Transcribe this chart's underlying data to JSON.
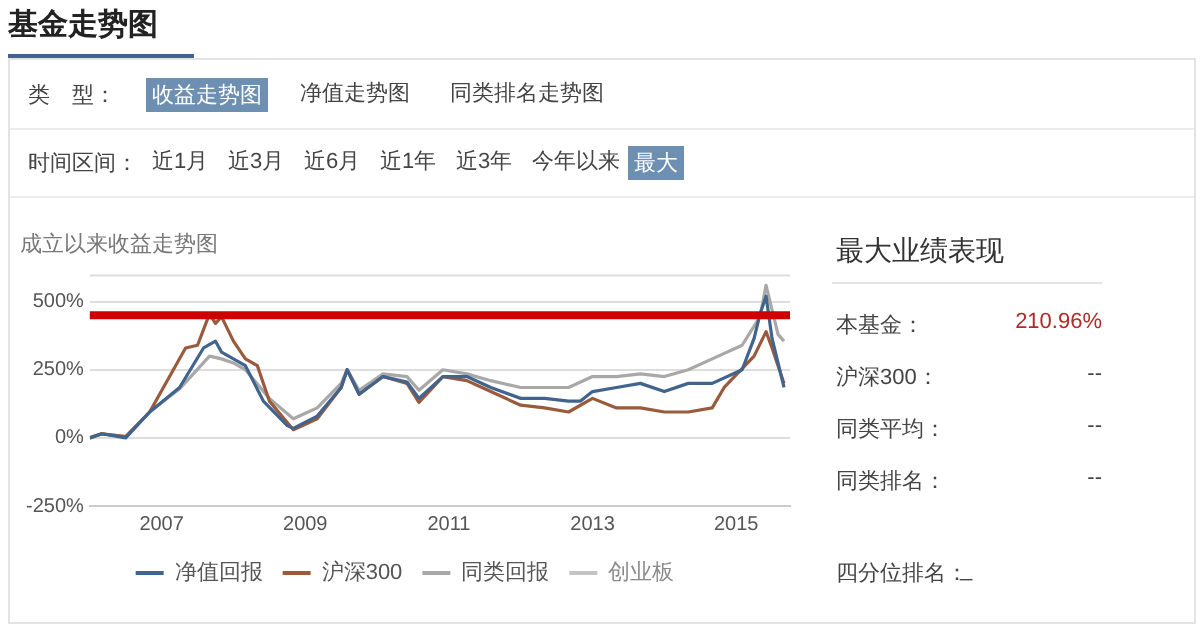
{
  "chart_data": {
    "type": "line",
    "title": "成立以来收益走势图",
    "xlim": [
      "2006-01",
      "2015-10"
    ],
    "xticks": [
      "2007",
      "2009",
      "2011",
      "2013",
      "2015"
    ],
    "ylim": [
      -250,
      600
    ],
    "yticks": [
      {
        "value": 500,
        "label": "500%"
      },
      {
        "value": 250,
        "label": "250%"
      },
      {
        "value": 0,
        "label": "0%"
      },
      {
        "value": -250,
        "label": "-250%"
      }
    ],
    "grid": "y",
    "legend": "bottom",
    "series": [
      {
        "name": "净值回报",
        "color": "#41648f",
        "x": [
          "2006-01",
          "2006-03",
          "2006-07",
          "2006-11",
          "2007-04",
          "2007-08",
          "2007-10",
          "2007-11",
          "2008-01",
          "2008-03",
          "2008-06",
          "2008-10",
          "2008-11",
          "2009-03",
          "2009-07",
          "2009-08",
          "2009-10",
          "2010-02",
          "2010-06",
          "2010-08",
          "2010-12",
          "2011-04",
          "2011-08",
          "2012-01",
          "2012-05",
          "2012-09",
          "2012-11",
          "2013-01",
          "2013-05",
          "2013-09",
          "2014-01",
          "2014-05",
          "2014-09",
          "2015-02",
          "2015-04",
          "2015-05",
          "2015-06",
          "2015-07",
          "2015-09"
        ],
        "values": [
          0,
          15,
          0,
          95,
          185,
          330,
          355,
          315,
          290,
          265,
          135,
          45,
          35,
          80,
          185,
          250,
          160,
          225,
          205,
          145,
          225,
          225,
          185,
          145,
          145,
          135,
          135,
          170,
          185,
          200,
          170,
          200,
          200,
          250,
          365,
          455,
          520,
          365,
          185
        ]
      },
      {
        "name": "沪深300",
        "color": "#9a5a3c",
        "x": [
          "2006-01",
          "2006-03",
          "2006-07",
          "2006-11",
          "2007-05",
          "2007-07",
          "2007-09",
          "2007-10",
          "2007-11",
          "2008-01",
          "2008-03",
          "2008-05",
          "2008-07",
          "2008-11",
          "2009-03",
          "2009-07",
          "2009-08",
          "2009-10",
          "2010-02",
          "2010-06",
          "2010-08",
          "2010-12",
          "2011-04",
          "2011-08",
          "2012-01",
          "2012-05",
          "2012-09",
          "2013-01",
          "2013-05",
          "2013-09",
          "2014-01",
          "2014-05",
          "2014-09",
          "2014-11",
          "2015-04",
          "2015-06",
          "2015-07",
          "2015-09"
        ],
        "values": [
          0,
          15,
          5,
          95,
          330,
          340,
          455,
          420,
          445,
          355,
          290,
          265,
          135,
          30,
          70,
          185,
          250,
          160,
          225,
          200,
          130,
          225,
          210,
          170,
          120,
          110,
          95,
          145,
          110,
          110,
          95,
          95,
          110,
          185,
          300,
          390,
          330,
          200
        ]
      },
      {
        "name": "同类回报",
        "color": "#a8a8a8",
        "x": [
          "2006-01",
          "2006-03",
          "2006-07",
          "2006-11",
          "2007-04",
          "2007-09",
          "2007-11",
          "2008-01",
          "2008-03",
          "2008-07",
          "2008-11",
          "2009-03",
          "2009-07",
          "2009-08",
          "2009-10",
          "2010-02",
          "2010-06",
          "2010-08",
          "2010-12",
          "2011-04",
          "2011-08",
          "2012-01",
          "2012-05",
          "2012-09",
          "2013-01",
          "2013-05",
          "2013-09",
          "2014-01",
          "2014-05",
          "2014-09",
          "2015-02",
          "2015-05",
          "2015-06",
          "2015-08",
          "2015-09"
        ],
        "values": [
          0,
          15,
          5,
          95,
          180,
          300,
          290,
          275,
          250,
          145,
          70,
          110,
          200,
          250,
          175,
          235,
          225,
          175,
          250,
          235,
          210,
          185,
          185,
          185,
          225,
          225,
          235,
          225,
          250,
          290,
          340,
          445,
          560,
          380,
          355
        ]
      },
      {
        "name": "创业板",
        "color": "#c4c4c4"
      }
    ],
    "ref_lines": [
      {
        "axis": "y",
        "value": 450,
        "color": "#cc0000"
      }
    ],
    "annotations": [
      "基金走势图",
      "类　型：",
      "收益走势图",
      "净值走势图",
      "同类排名走势图",
      "时间区间：",
      "近1月",
      "近3月",
      "近6月",
      "近1年",
      "近3年",
      "今年以来",
      "最大",
      "最大业绩表现",
      "本基金：",
      "210.96%",
      "沪深300：",
      "--",
      "同类平均：",
      "--",
      "同类排名：",
      "--",
      "四分位排名：",
      "_"
    ]
  }
}
